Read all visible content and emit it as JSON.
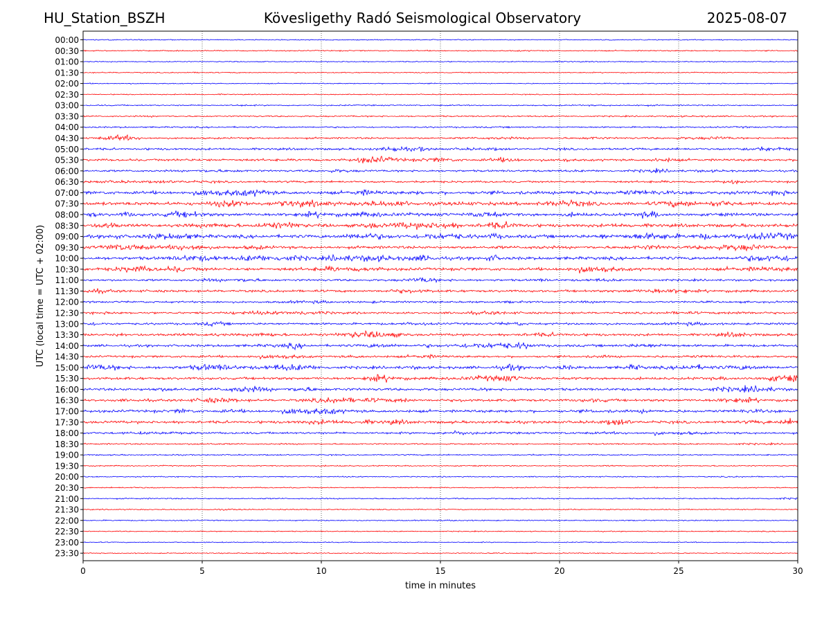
{
  "header": {
    "station": "HU_Station_BSZH",
    "observatory": "Kövesligethy Radó Seismological Observatory",
    "date": "2025-08-07"
  },
  "colors": {
    "odd": "#ff0000",
    "even": "#0000ff",
    "grid": "#000000"
  },
  "chart_data": {
    "type": "helicorder",
    "xlabel": "time in minutes",
    "ylabel": "UTC (local time = UTC + 02:00)",
    "xlim": [
      0,
      30
    ],
    "xticks": [
      "0",
      "5",
      "10",
      "15",
      "20",
      "25",
      "30"
    ],
    "grid": "vertical dotted at each x tick",
    "rows": [
      {
        "label": "00:00",
        "level": 0.15
      },
      {
        "label": "00:30",
        "level": 0.2
      },
      {
        "label": "01:00",
        "level": 0.15
      },
      {
        "label": "01:30",
        "level": 0.15
      },
      {
        "label": "02:00",
        "level": 0.15
      },
      {
        "label": "02:30",
        "level": 0.15
      },
      {
        "label": "03:00",
        "level": 0.25
      },
      {
        "label": "03:30",
        "level": 0.3
      },
      {
        "label": "04:00",
        "level": 0.35
      },
      {
        "label": "04:30",
        "level": 0.45
      },
      {
        "label": "05:00",
        "level": 0.55
      },
      {
        "label": "05:30",
        "level": 0.6
      },
      {
        "label": "06:00",
        "level": 0.5
      },
      {
        "label": "06:30",
        "level": 0.5
      },
      {
        "label": "07:00",
        "level": 0.9
      },
      {
        "label": "07:30",
        "level": 0.95
      },
      {
        "label": "08:00",
        "level": 0.85
      },
      {
        "label": "08:30",
        "level": 0.9
      },
      {
        "label": "09:00",
        "level": 0.95
      },
      {
        "label": "09:30",
        "level": 0.75
      },
      {
        "label": "10:00",
        "level": 0.9
      },
      {
        "label": "10:30",
        "level": 0.8
      },
      {
        "label": "11:00",
        "level": 0.55
      },
      {
        "label": "11:30",
        "level": 0.65
      },
      {
        "label": "12:00",
        "level": 0.5
      },
      {
        "label": "12:30",
        "level": 0.5
      },
      {
        "label": "13:00",
        "level": 0.55
      },
      {
        "label": "13:30",
        "level": 0.65
      },
      {
        "label": "14:00",
        "level": 0.65
      },
      {
        "label": "14:30",
        "level": 0.55
      },
      {
        "label": "15:00",
        "level": 0.8
      },
      {
        "label": "15:30",
        "level": 0.7
      },
      {
        "label": "16:00",
        "level": 0.7
      },
      {
        "label": "16:30",
        "level": 0.65
      },
      {
        "label": "17:00",
        "level": 0.75
      },
      {
        "label": "17:30",
        "level": 0.75
      },
      {
        "label": "18:00",
        "level": 0.55
      },
      {
        "label": "18:30",
        "level": 0.3
      },
      {
        "label": "19:00",
        "level": 0.25
      },
      {
        "label": "19:30",
        "level": 0.2
      },
      {
        "label": "20:00",
        "level": 0.2
      },
      {
        "label": "20:30",
        "level": 0.2
      },
      {
        "label": "21:00",
        "level": 0.25
      },
      {
        "label": "21:30",
        "level": 0.2
      },
      {
        "label": "22:00",
        "level": 0.2
      },
      {
        "label": "22:30",
        "level": 0.15
      },
      {
        "label": "23:00",
        "level": 0.15
      },
      {
        "label": "23:30",
        "level": 0.15
      }
    ]
  }
}
